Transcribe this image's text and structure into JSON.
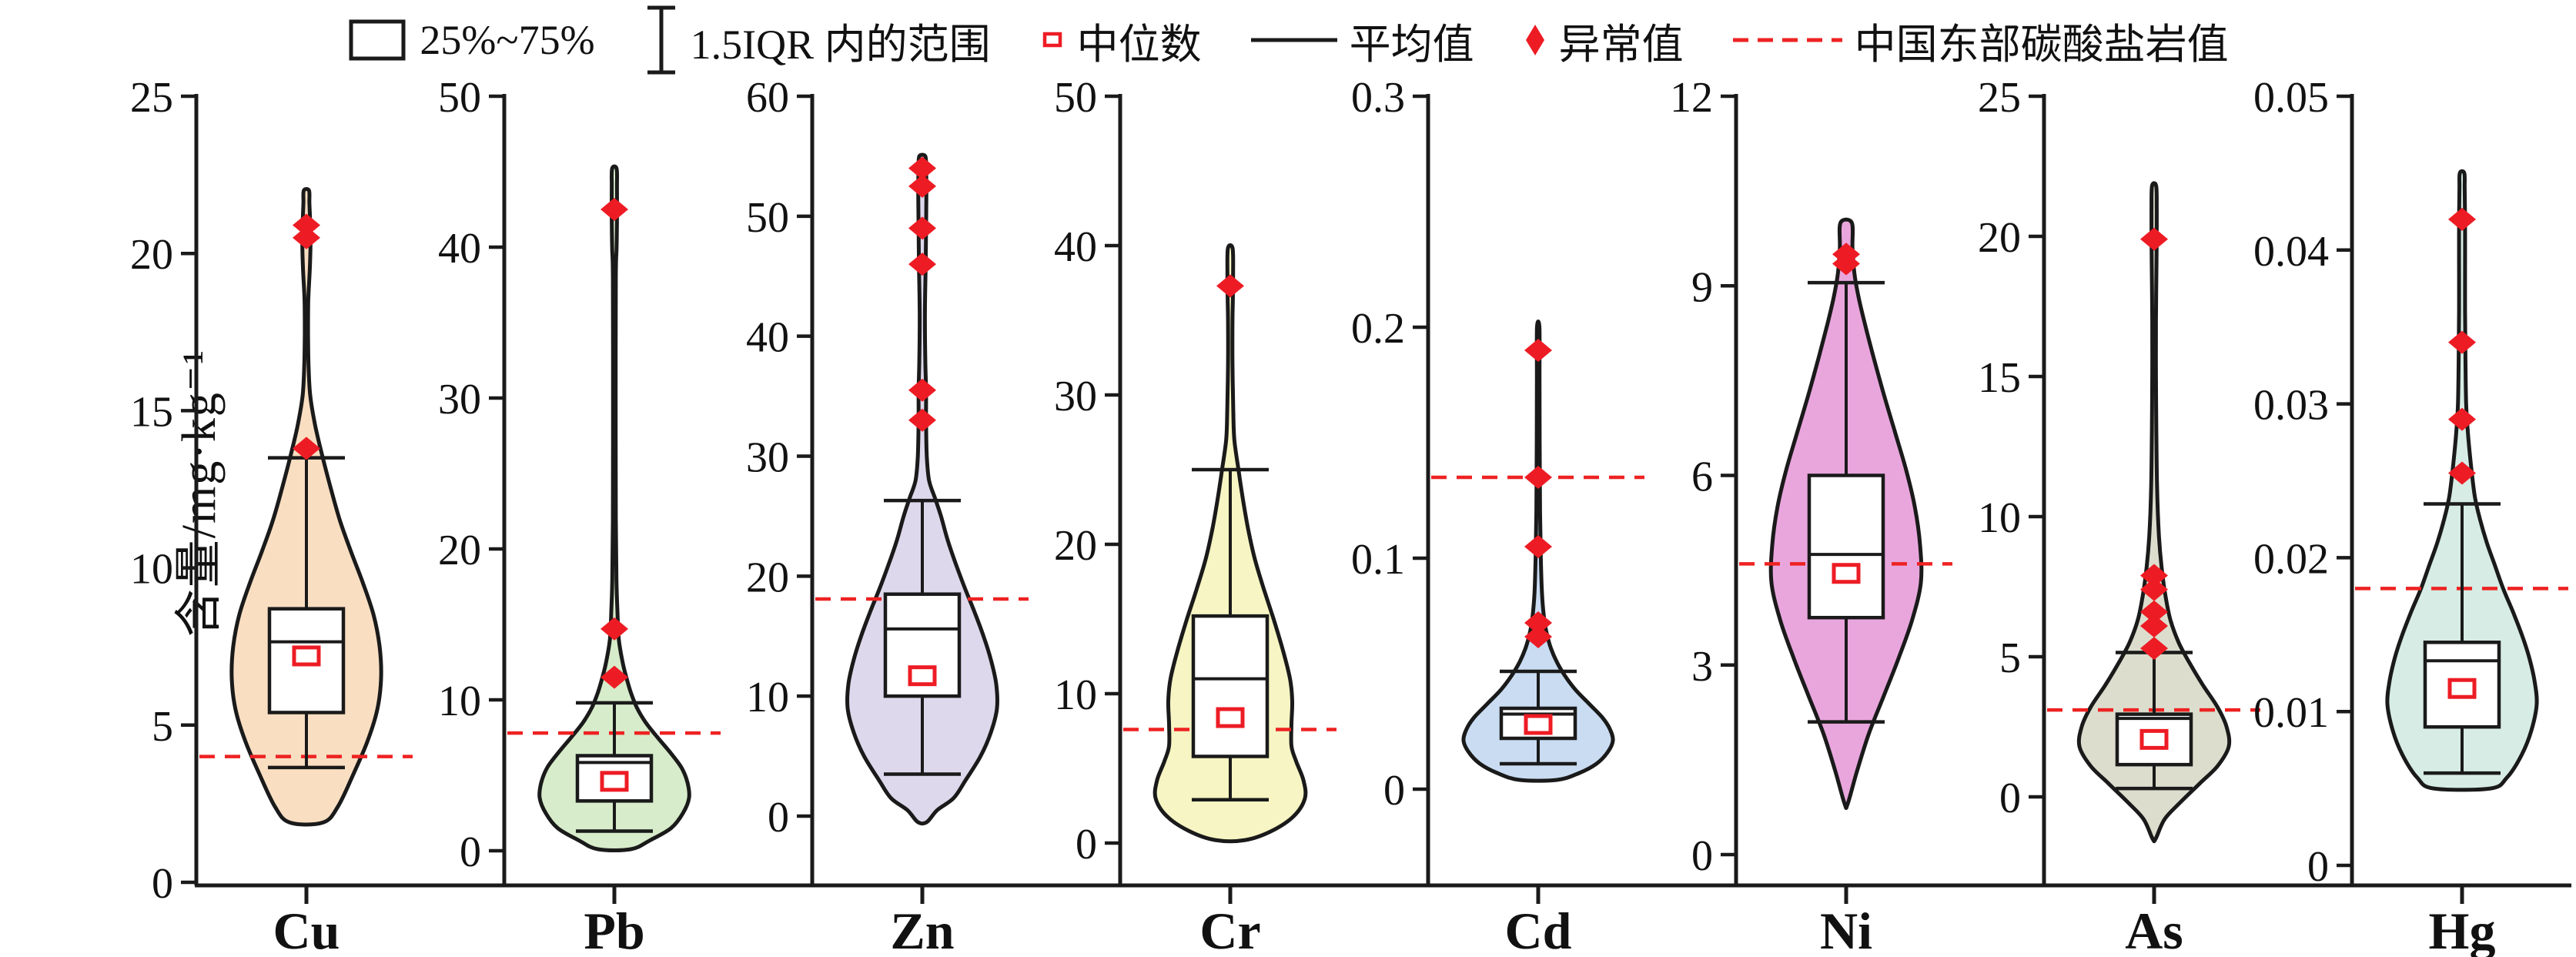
{
  "y_axis_label": "含量/mg·kg⁻¹",
  "colors": {
    "accent_red": "#ed1c24",
    "reference_line_red": "#ee2222",
    "axis_black": "#1a1a1a",
    "violin_fills": {
      "Cu": "#f9dec2",
      "Pb": "#d7ecca",
      "Zn": "#ded8ec",
      "Cr": "#f6f5c3",
      "Cd": "#c9dcf2",
      "Ni": "#e9a6dd",
      "As": "#dcddcd",
      "Hg": "#d6ece4"
    }
  },
  "legend": {
    "items": [
      {
        "icon": "box-25-75-icon",
        "label": "25%~75%"
      },
      {
        "icon": "whisker-range-icon",
        "label": "1.5IQR 内的范围"
      },
      {
        "icon": "median-square-icon",
        "label": "中位数"
      },
      {
        "icon": "mean-line-icon",
        "label": "平均值"
      },
      {
        "icon": "outlier-diamond-icon",
        "label": "异常值"
      },
      {
        "icon": "reference-dashed-icon",
        "label": "中国东部碳酸盐岩值"
      }
    ]
  },
  "chart_data": {
    "type": "violin-box",
    "ylabel": "含量/mg·kg⁻¹",
    "legend_position": "top-center",
    "grid": false,
    "panels": [
      {
        "element": "Cu",
        "axis": {
          "min": 0,
          "max": 25,
          "ticks": [
            0,
            5,
            10,
            15,
            20,
            25
          ]
        },
        "box": {
          "q1": 5.4,
          "q3": 8.7,
          "mean": 7.65,
          "median": 7.2
        },
        "whiskers": {
          "low": 3.65,
          "high": 13.5
        },
        "outliers": [
          20.9,
          20.5,
          13.8
        ],
        "reference_value": 4.0,
        "violin_range": [
          1.9,
          22.0
        ],
        "violin_profile": [
          [
            1.9,
            0.22
          ],
          [
            2.4,
            0.42
          ],
          [
            3.5,
            0.64
          ],
          [
            4.5,
            0.82
          ],
          [
            5.5,
            0.95
          ],
          [
            6.5,
            1.0
          ],
          [
            7.5,
            0.98
          ],
          [
            8.5,
            0.9
          ],
          [
            9.5,
            0.76
          ],
          [
            10.5,
            0.6
          ],
          [
            11.5,
            0.45
          ],
          [
            12.5,
            0.33
          ],
          [
            13.5,
            0.22
          ],
          [
            14.5,
            0.12
          ],
          [
            15.5,
            0.05
          ],
          [
            16.5,
            0.028
          ],
          [
            17.5,
            0.022
          ],
          [
            18.5,
            0.025
          ],
          [
            19.5,
            0.045
          ],
          [
            20.3,
            0.055
          ],
          [
            21.0,
            0.05
          ],
          [
            21.6,
            0.04
          ],
          [
            22.0,
            0.035
          ]
        ]
      },
      {
        "element": "Pb",
        "axis": {
          "min": 0,
          "max": 50,
          "ticks": [
            0,
            10,
            20,
            30,
            40,
            50
          ]
        },
        "box": {
          "q1": 3.3,
          "q3": 6.3,
          "mean": 5.85,
          "median": 4.6
        },
        "whiskers": {
          "low": 1.3,
          "high": 9.8
        },
        "outliers": [
          42.5,
          14.7,
          11.5
        ],
        "reference_value": 7.8,
        "violin_range": [
          0.1,
          45.2
        ],
        "violin_profile": [
          [
            0.1,
            0.22
          ],
          [
            0.7,
            0.48
          ],
          [
            1.5,
            0.76
          ],
          [
            2.5,
            0.92
          ],
          [
            3.5,
            1.0
          ],
          [
            4.5,
            0.98
          ],
          [
            5.5,
            0.9
          ],
          [
            6.5,
            0.75
          ],
          [
            7.5,
            0.58
          ],
          [
            8.5,
            0.42
          ],
          [
            9.5,
            0.3
          ],
          [
            10.5,
            0.22
          ],
          [
            11.5,
            0.16
          ],
          [
            12.5,
            0.11
          ],
          [
            14,
            0.06
          ],
          [
            16,
            0.04
          ],
          [
            18,
            0.028
          ],
          [
            22,
            0.02
          ],
          [
            30,
            0.018
          ],
          [
            38,
            0.02
          ],
          [
            40,
            0.03
          ],
          [
            42,
            0.035
          ],
          [
            44,
            0.035
          ],
          [
            45.2,
            0.03
          ]
        ]
      },
      {
        "element": "Zn",
        "axis": {
          "min": 0,
          "max": 60,
          "ticks": [
            0,
            10,
            20,
            30,
            40,
            50,
            60
          ]
        },
        "box": {
          "q1": 10.0,
          "q3": 18.5,
          "mean": 15.6,
          "median": 11.7
        },
        "whiskers": {
          "low": 3.5,
          "high": 26.3
        },
        "outliers": [
          54,
          52.5,
          49,
          46,
          35.5,
          33
        ],
        "reference_value": 18.1,
        "violin_range": [
          -0.5,
          55.0
        ],
        "violin_profile": [
          [
            -0.5,
            0.06
          ],
          [
            0.5,
            0.2
          ],
          [
            1.5,
            0.42
          ],
          [
            3,
            0.58
          ],
          [
            5,
            0.78
          ],
          [
            7,
            0.92
          ],
          [
            9,
            1.0
          ],
          [
            11,
            0.99
          ],
          [
            13,
            0.92
          ],
          [
            15,
            0.82
          ],
          [
            17,
            0.7
          ],
          [
            19,
            0.57
          ],
          [
            21,
            0.45
          ],
          [
            23,
            0.34
          ],
          [
            25,
            0.25
          ],
          [
            26.5,
            0.17
          ],
          [
            28,
            0.09
          ],
          [
            30,
            0.06
          ],
          [
            33,
            0.05
          ],
          [
            35.5,
            0.05
          ],
          [
            38,
            0.04
          ],
          [
            42,
            0.035
          ],
          [
            46,
            0.045
          ],
          [
            49,
            0.05
          ],
          [
            52,
            0.055
          ],
          [
            54,
            0.05
          ],
          [
            55,
            0.04
          ]
        ]
      },
      {
        "element": "Cr",
        "axis": {
          "min": 0,
          "max": 50,
          "ticks": [
            0,
            10,
            20,
            30,
            40,
            50
          ]
        },
        "box": {
          "q1": 5.8,
          "q3": 15.2,
          "mean": 11.0,
          "median": 8.4
        },
        "whiskers": {
          "low": 2.9,
          "high": 25.0
        },
        "outliers": [
          37.3
        ],
        "reference_value": 7.6,
        "violin_range": [
          0.2,
          39.8
        ],
        "violin_profile": [
          [
            0.2,
            0.2
          ],
          [
            0.8,
            0.55
          ],
          [
            1.8,
            0.85
          ],
          [
            3.0,
            1.0
          ],
          [
            4.2,
            0.98
          ],
          [
            5.5,
            0.88
          ],
          [
            6.5,
            0.82
          ],
          [
            8.0,
            0.82
          ],
          [
            9.5,
            0.83
          ],
          [
            11,
            0.8
          ],
          [
            13,
            0.7
          ],
          [
            15,
            0.58
          ],
          [
            17,
            0.45
          ],
          [
            19,
            0.33
          ],
          [
            21,
            0.24
          ],
          [
            23,
            0.17
          ],
          [
            25,
            0.11
          ],
          [
            27,
            0.055
          ],
          [
            29,
            0.04
          ],
          [
            32,
            0.03
          ],
          [
            35,
            0.03
          ],
          [
            36.5,
            0.035
          ],
          [
            38,
            0.038
          ],
          [
            39.8,
            0.032
          ]
        ]
      },
      {
        "element": "Cd",
        "axis": {
          "min": 0,
          "max": 0.3,
          "ticks": [
            0,
            0.1,
            0.2,
            0.3
          ]
        },
        "box": {
          "q1": 0.022,
          "q3": 0.035,
          "mean": 0.0325,
          "median": 0.028
        },
        "whiskers": {
          "low": 0.011,
          "high": 0.051
        },
        "outliers": [
          0.19,
          0.135,
          0.105,
          0.072,
          0.066
        ],
        "reference_value": 0.135,
        "violin_range": [
          0.004,
          0.2
        ],
        "violin_profile": [
          [
            0.004,
            0.25
          ],
          [
            0.007,
            0.55
          ],
          [
            0.011,
            0.78
          ],
          [
            0.016,
            0.93
          ],
          [
            0.021,
            1.0
          ],
          [
            0.026,
            0.96
          ],
          [
            0.031,
            0.86
          ],
          [
            0.037,
            0.68
          ],
          [
            0.043,
            0.5
          ],
          [
            0.049,
            0.36
          ],
          [
            0.055,
            0.25
          ],
          [
            0.061,
            0.17
          ],
          [
            0.068,
            0.11
          ],
          [
            0.075,
            0.075
          ],
          [
            0.085,
            0.05
          ],
          [
            0.1,
            0.035
          ],
          [
            0.12,
            0.025
          ],
          [
            0.15,
            0.02
          ],
          [
            0.18,
            0.018
          ],
          [
            0.2,
            0.016
          ]
        ]
      },
      {
        "element": "Ni",
        "axis": {
          "min": 0,
          "max": 12,
          "ticks": [
            0,
            3,
            6,
            9,
            12
          ]
        },
        "box": {
          "q1": 3.75,
          "q3": 6.0,
          "mean": 4.75,
          "median": 4.45
        },
        "whiskers": {
          "low": 2.1,
          "high": 9.05
        },
        "outliers": [
          9.5,
          9.35
        ],
        "reference_value": 4.6,
        "violin_range": [
          0.8,
          10.0
        ],
        "violin_profile": [
          [
            0.8,
            0.02
          ],
          [
            1.3,
            0.14
          ],
          [
            1.9,
            0.3
          ],
          [
            2.5,
            0.5
          ],
          [
            3.1,
            0.7
          ],
          [
            3.7,
            0.88
          ],
          [
            4.3,
            1.0
          ],
          [
            4.9,
            0.99
          ],
          [
            5.5,
            0.92
          ],
          [
            6.1,
            0.8
          ],
          [
            6.7,
            0.65
          ],
          [
            7.3,
            0.5
          ],
          [
            7.9,
            0.36
          ],
          [
            8.4,
            0.25
          ],
          [
            8.8,
            0.17
          ],
          [
            9.2,
            0.11
          ],
          [
            9.6,
            0.085
          ],
          [
            10.0,
            0.075
          ]
        ]
      },
      {
        "element": "As",
        "axis": {
          "min": 0,
          "max": 25,
          "ticks": [
            0,
            5,
            10,
            15,
            20,
            25
          ]
        },
        "box": {
          "q1": 1.15,
          "q3": 2.95,
          "mean": 2.8,
          "median": 2.05
        },
        "whiskers": {
          "low": 0.3,
          "high": 5.15
        },
        "outliers": [
          19.9,
          7.9,
          7.4,
          6.6,
          6.1,
          5.3
        ],
        "reference_value": 3.1,
        "violin_range": [
          -1.5,
          21.8
        ],
        "violin_profile": [
          [
            -1.5,
            0.02
          ],
          [
            -0.8,
            0.14
          ],
          [
            -0.2,
            0.35
          ],
          [
            0.5,
            0.62
          ],
          [
            1.1,
            0.85
          ],
          [
            1.8,
            1.0
          ],
          [
            2.5,
            0.97
          ],
          [
            3.2,
            0.85
          ],
          [
            4.0,
            0.65
          ],
          [
            4.8,
            0.47
          ],
          [
            5.5,
            0.33
          ],
          [
            6.3,
            0.22
          ],
          [
            7.2,
            0.15
          ],
          [
            8.2,
            0.1
          ],
          [
            9.3,
            0.065
          ],
          [
            11,
            0.04
          ],
          [
            13,
            0.03
          ],
          [
            15,
            0.025
          ],
          [
            17,
            0.025
          ],
          [
            18.5,
            0.03
          ],
          [
            20,
            0.035
          ],
          [
            21,
            0.035
          ],
          [
            21.8,
            0.028
          ]
        ]
      },
      {
        "element": "Hg",
        "axis": {
          "min": 0,
          "max": 0.05,
          "ticks": [
            0,
            0.01,
            0.02,
            0.03,
            0.04,
            0.05
          ]
        },
        "box": {
          "q1": 0.009,
          "q3": 0.0145,
          "mean": 0.0133,
          "median": 0.0115
        },
        "whiskers": {
          "low": 0.006,
          "high": 0.0235
        },
        "outliers": [
          0.042,
          0.034,
          0.029,
          0.0255
        ],
        "reference_value": 0.018,
        "violin_range": [
          0.005,
          0.045
        ],
        "violin_profile": [
          [
            0.005,
            0.38
          ],
          [
            0.0057,
            0.6
          ],
          [
            0.0072,
            0.8
          ],
          [
            0.0088,
            0.93
          ],
          [
            0.0105,
            1.0
          ],
          [
            0.012,
            0.97
          ],
          [
            0.0135,
            0.9
          ],
          [
            0.015,
            0.8
          ],
          [
            0.0165,
            0.68
          ],
          [
            0.018,
            0.55
          ],
          [
            0.0195,
            0.44
          ],
          [
            0.021,
            0.33
          ],
          [
            0.0225,
            0.24
          ],
          [
            0.024,
            0.17
          ],
          [
            0.026,
            0.12
          ],
          [
            0.028,
            0.08
          ],
          [
            0.03,
            0.055
          ],
          [
            0.033,
            0.045
          ],
          [
            0.036,
            0.04
          ],
          [
            0.039,
            0.04
          ],
          [
            0.042,
            0.04
          ],
          [
            0.044,
            0.035
          ],
          [
            0.045,
            0.03
          ]
        ]
      }
    ]
  }
}
